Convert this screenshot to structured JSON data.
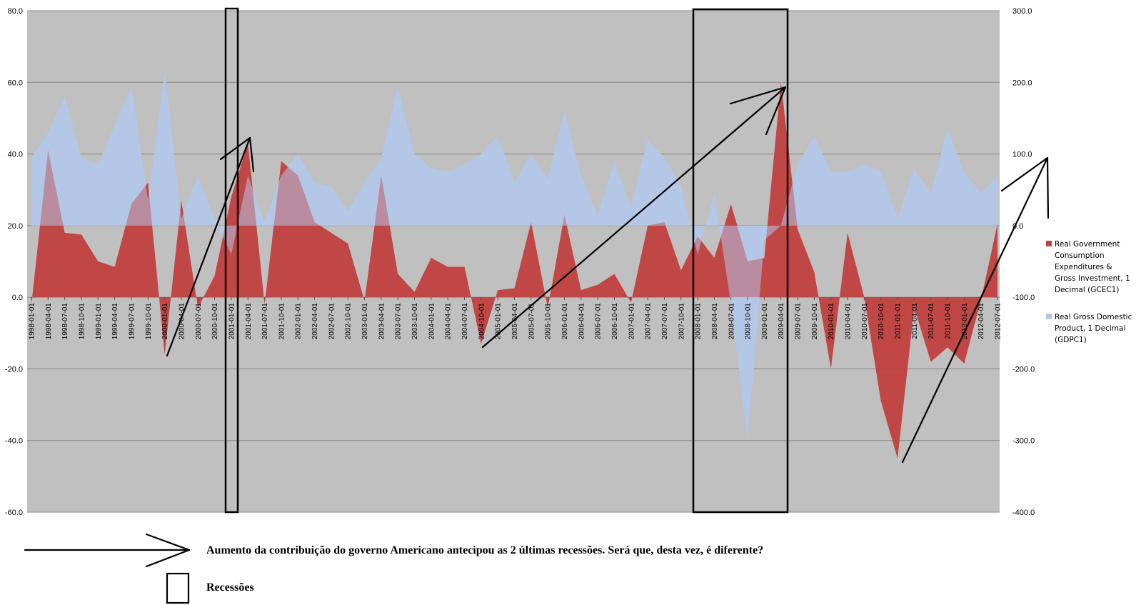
{
  "chart_data": {
    "type": "area",
    "left_axis": {
      "min": -60,
      "max": 80,
      "step": 20,
      "tick_labels": [
        "80.0",
        "60.0",
        "40.0",
        "20.0",
        "0.0",
        "-20.0",
        "-40.0",
        "-60.0"
      ]
    },
    "right_axis": {
      "min": -400,
      "max": 300,
      "step": 100,
      "tick_labels": [
        "300.0",
        "200.0",
        "100.0",
        "0.0",
        "-100.0",
        "-200.0",
        "-300.0",
        "-400.0"
      ]
    },
    "grid": "horizontal",
    "legend_position": "right",
    "categories": [
      "1998-01-01",
      "1998-04-01",
      "1998-07-01",
      "1998-10-01",
      "1999-01-01",
      "1999-04-01",
      "1999-07-01",
      "1999-10-01",
      "2000-01-01",
      "2000-04-01",
      "2000-07-01",
      "2000-10-01",
      "2001-01-01",
      "2001-04-01",
      "2001-07-01",
      "2001-10-01",
      "2002-01-01",
      "2002-04-01",
      "2002-07-01",
      "2002-10-01",
      "2003-01-01",
      "2003-04-01",
      "2003-07-01",
      "2003-10-01",
      "2004-01-01",
      "2004-04-01",
      "2004-07-01",
      "2004-10-01",
      "2005-01-01",
      "2005-04-01",
      "2005-07-01",
      "2005-10-01",
      "2006-01-01",
      "2006-04-01",
      "2006-07-01",
      "2006-10-01",
      "2007-01-01",
      "2007-04-01",
      "2007-07-01",
      "2007-10-01",
      "2008-01-01",
      "2008-04-01",
      "2008-07-01",
      "2008-10-01",
      "2009-01-01",
      "2009-04-01",
      "2009-07-01",
      "2009-10-01",
      "2010-01-01",
      "2010-04-01",
      "2010-07-01",
      "2010-10-01",
      "2011-01-01",
      "2011-04-01",
      "2011-07-01",
      "2011-10-01",
      "2012-01-01",
      "2012-04-01",
      "2012-07-01"
    ],
    "series": [
      {
        "name": "Real Government Consumption Expenditures & Gross Investment, 1 Decimal (GCEC1)",
        "axis": "left",
        "color": "#c0403e",
        "values": [
          -2,
          41,
          18,
          17.5,
          10,
          8.5,
          26,
          32,
          -16,
          27,
          -3,
          6,
          28,
          43,
          -2,
          38,
          34,
          21,
          18,
          15,
          -1,
          34,
          6.5,
          1.5,
          11,
          8.5,
          8.5,
          -13,
          2,
          2.5,
          21,
          -3,
          23,
          2,
          3.5,
          6.5,
          -1.5,
          20,
          21,
          7.5,
          17,
          11,
          26,
          10,
          11,
          60,
          19,
          7,
          -20,
          18,
          0,
          -29,
          -45,
          -3,
          -18,
          -14,
          -18.5,
          -1,
          20.5
        ]
      },
      {
        "name": "Real Gross Domestic Product, 1 Decimal (GDPC1)",
        "axis": "right",
        "color": "#b4c7e7",
        "values": [
          95,
          130,
          180,
          95,
          85,
          140,
          195,
          35,
          215,
          10,
          70,
          10,
          -40,
          70,
          5,
          70,
          100,
          60,
          55,
          20,
          60,
          95,
          195,
          100,
          80,
          75,
          85,
          100,
          125,
          60,
          100,
          65,
          160,
          70,
          15,
          90,
          25,
          120,
          95,
          55,
          -40,
          45,
          -110,
          -300,
          -20,
          0,
          85,
          125,
          75,
          75,
          85,
          75,
          10,
          80,
          45,
          135,
          75,
          45,
          70
        ]
      }
    ],
    "legend": [
      "Real Government Consumption Expenditures & Gross Investment, 1 Decimal (GCEC1)",
      "Real Gross Domestic Product, 1 Decimal (GDPC1)"
    ]
  },
  "annotation": {
    "arrow_text": "Aumento da contribuição do governo Americano antecipou as 2 últimas recessões. Será que, desta vez, é diferente?",
    "box_text": "Recessões"
  },
  "colors": {
    "plot_background": "#c0c0c0",
    "gridline": "#868686",
    "arrows": "#000000",
    "recession_boxes": "#000000"
  }
}
